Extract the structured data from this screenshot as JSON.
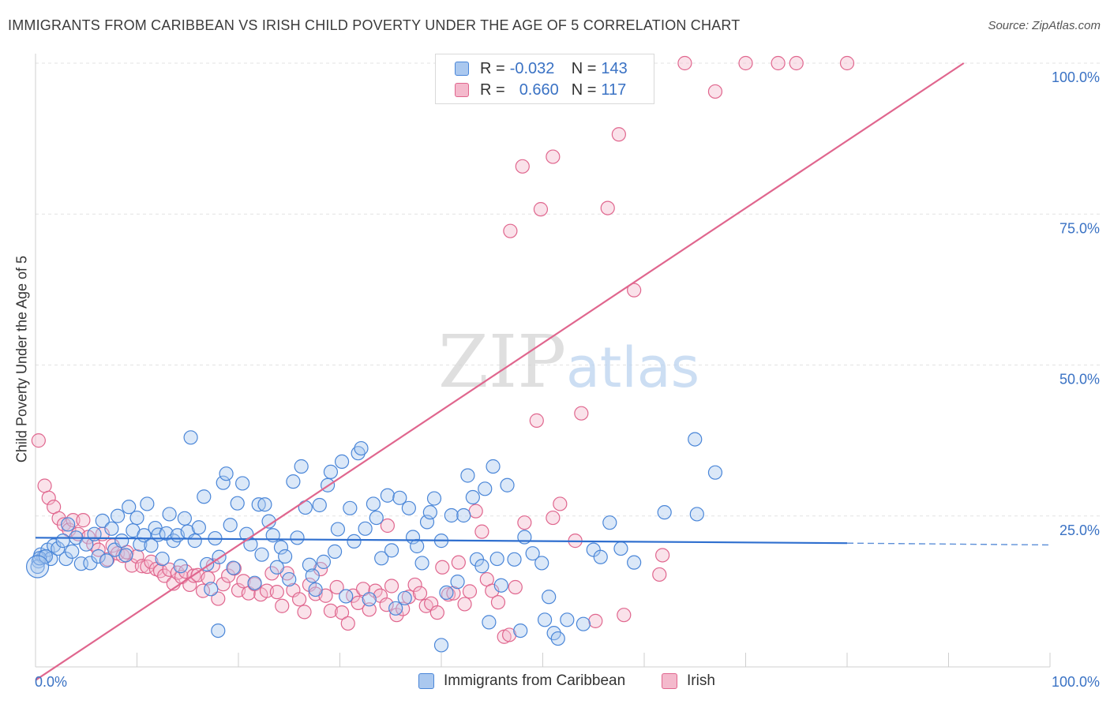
{
  "title": "IMMIGRANTS FROM CARIBBEAN VS IRISH CHILD POVERTY UNDER THE AGE OF 5 CORRELATION CHART",
  "source": "Source: ZipAtlas.com",
  "watermark": {
    "zip": "ZIP",
    "atlas": "atlas"
  },
  "legend": {
    "rows": [
      {
        "r_label": "R =",
        "r_value": "-0.032",
        "n_label": "N =",
        "n_value": "143"
      },
      {
        "r_label": "R =",
        "r_value": "0.660",
        "n_label": "N =",
        "n_value": "117"
      }
    ]
  },
  "bottom_legend": {
    "series1": "Immigrants from Caribbean",
    "series2": "Irish"
  },
  "colors": {
    "blue": "#4a86d8",
    "blue_fill": "#aac8ef",
    "pink": "#e0668e",
    "pink_fill": "#f4b9cc",
    "axis_label": "#3a72c4"
  },
  "chart_data": {
    "type": "scatter",
    "title": "IMMIGRANTS FROM CARIBBEAN VS IRISH CHILD POVERTY UNDER THE AGE OF 5 CORRELATION CHART",
    "xlabel": "",
    "ylabel": "Child Poverty Under the Age of 5",
    "xlim": [
      0,
      100
    ],
    "ylim": [
      0,
      100
    ],
    "x_tick_labels": [
      "0.0%",
      "100.0%"
    ],
    "y_tick_labels": [
      "100.0%",
      "75.0%",
      "50.0%",
      "25.0%"
    ],
    "y_ticks": [
      100,
      75,
      50,
      25
    ],
    "grid": true,
    "legend_position": "top-center",
    "series": [
      {
        "name": "Immigrants from Caribbean",
        "color": "#4a86d8",
        "R": -0.032,
        "N": 143,
        "trend": {
          "x": [
            0,
            80
          ],
          "y": [
            21.4,
            20.5
          ],
          "dashed_to_x": 100,
          "dashed_y_end": 20.2
        },
        "points": [
          [
            0.3,
            17.5
          ],
          [
            0.5,
            18.6
          ],
          [
            0.8,
            18.2
          ],
          [
            1.2,
            19.4
          ],
          [
            1.5,
            17.9
          ],
          [
            1.8,
            20.1
          ],
          [
            2.2,
            19.6
          ],
          [
            2.7,
            20.9
          ],
          [
            3.0,
            17.9
          ],
          [
            3.2,
            23.6
          ],
          [
            3.6,
            19.1
          ],
          [
            4.0,
            21.4
          ],
          [
            4.5,
            17.1
          ],
          [
            5.0,
            20.3
          ],
          [
            5.4,
            17.2
          ],
          [
            5.8,
            22.0
          ],
          [
            6.2,
            18.3
          ],
          [
            6.6,
            24.2
          ],
          [
            7.0,
            17.6
          ],
          [
            7.5,
            22.9
          ],
          [
            7.8,
            19.4
          ],
          [
            8.1,
            25.0
          ],
          [
            8.5,
            20.9
          ],
          [
            8.9,
            18.5
          ],
          [
            9.2,
            26.5
          ],
          [
            9.6,
            22.6
          ],
          [
            10.0,
            24.7
          ],
          [
            10.3,
            20.3
          ],
          [
            10.7,
            21.8
          ],
          [
            11.0,
            27.0
          ],
          [
            11.4,
            20.1
          ],
          [
            11.8,
            23.0
          ],
          [
            12.1,
            21.9
          ],
          [
            12.5,
            17.9
          ],
          [
            12.9,
            22.1
          ],
          [
            13.2,
            25.3
          ],
          [
            13.6,
            20.9
          ],
          [
            14.0,
            21.8
          ],
          [
            14.3,
            16.7
          ],
          [
            14.7,
            24.6
          ],
          [
            15.0,
            22.4
          ],
          [
            15.3,
            38.0
          ],
          [
            15.7,
            20.9
          ],
          [
            16.1,
            23.1
          ],
          [
            16.6,
            28.2
          ],
          [
            16.9,
            17.0
          ],
          [
            17.3,
            12.9
          ],
          [
            17.7,
            21.3
          ],
          [
            18.1,
            18.2
          ],
          [
            18.5,
            30.5
          ],
          [
            18.8,
            32.0
          ],
          [
            19.2,
            23.5
          ],
          [
            19.5,
            16.4
          ],
          [
            19.9,
            27.1
          ],
          [
            20.4,
            30.4
          ],
          [
            20.8,
            22.0
          ],
          [
            21.2,
            20.3
          ],
          [
            21.6,
            13.9
          ],
          [
            22.0,
            26.9
          ],
          [
            22.3,
            18.6
          ],
          [
            22.6,
            26.9
          ],
          [
            23.0,
            24.1
          ],
          [
            23.4,
            21.8
          ],
          [
            23.8,
            16.5
          ],
          [
            24.2,
            19.8
          ],
          [
            24.6,
            18.3
          ],
          [
            25.0,
            14.5
          ],
          [
            25.4,
            30.7
          ],
          [
            25.8,
            21.4
          ],
          [
            26.2,
            33.2
          ],
          [
            26.6,
            26.4
          ],
          [
            27.0,
            16.9
          ],
          [
            27.3,
            15.1
          ],
          [
            27.6,
            12.8
          ],
          [
            28.0,
            26.8
          ],
          [
            28.4,
            17.4
          ],
          [
            28.8,
            30.1
          ],
          [
            29.1,
            32.3
          ],
          [
            29.5,
            19.1
          ],
          [
            29.8,
            22.8
          ],
          [
            30.2,
            34.0
          ],
          [
            30.6,
            11.7
          ],
          [
            31.0,
            26.3
          ],
          [
            31.4,
            20.8
          ],
          [
            31.8,
            35.4
          ],
          [
            32.1,
            36.2
          ],
          [
            32.5,
            22.9
          ],
          [
            32.9,
            11.2
          ],
          [
            33.3,
            27.0
          ],
          [
            33.6,
            24.7
          ],
          [
            34.1,
            18.0
          ],
          [
            34.7,
            28.4
          ],
          [
            35.1,
            19.3
          ],
          [
            35.5,
            9.7
          ],
          [
            35.9,
            28.0
          ],
          [
            36.4,
            11.4
          ],
          [
            36.8,
            26.3
          ],
          [
            37.2,
            21.5
          ],
          [
            37.6,
            20.0
          ],
          [
            38.1,
            17.2
          ],
          [
            38.6,
            24.0
          ],
          [
            38.9,
            25.6
          ],
          [
            39.3,
            27.9
          ],
          [
            40.0,
            20.9
          ],
          [
            40.5,
            12.3
          ],
          [
            41.0,
            25.1
          ],
          [
            41.6,
            14.1
          ],
          [
            42.2,
            25.1
          ],
          [
            42.6,
            31.7
          ],
          [
            43.1,
            28.1
          ],
          [
            43.5,
            17.8
          ],
          [
            44.0,
            16.7
          ],
          [
            44.3,
            29.5
          ],
          [
            44.7,
            7.4
          ],
          [
            45.1,
            33.2
          ],
          [
            45.5,
            17.9
          ],
          [
            45.9,
            13.5
          ],
          [
            46.5,
            30.1
          ],
          [
            47.2,
            17.8
          ],
          [
            47.8,
            6.0
          ],
          [
            48.2,
            21.5
          ],
          [
            49.0,
            18.8
          ],
          [
            49.9,
            17.2
          ],
          [
            50.2,
            7.8
          ],
          [
            50.6,
            11.6
          ],
          [
            51.1,
            5.6
          ],
          [
            51.5,
            4.7
          ],
          [
            52.4,
            7.8
          ],
          [
            54.0,
            7.1
          ],
          [
            55.0,
            19.4
          ],
          [
            55.7,
            18.2
          ],
          [
            56.6,
            23.9
          ],
          [
            57.7,
            19.6
          ],
          [
            59.0,
            17.3
          ],
          [
            62.0,
            25.6
          ],
          [
            65.0,
            37.7
          ],
          [
            65.2,
            25.3
          ],
          [
            67.0,
            32.2
          ],
          [
            18.0,
            6.0
          ],
          [
            0.2,
            16.6
          ],
          [
            0.4,
            18.0
          ],
          [
            1.0,
            18.3
          ],
          [
            40.0,
            3.6
          ]
        ]
      },
      {
        "name": "Irish",
        "color": "#e0668e",
        "R": 0.66,
        "N": 117,
        "trend": {
          "x": [
            0,
            91.5
          ],
          "y": [
            -2.2,
            100
          ]
        },
        "points": [
          [
            0.3,
            37.5
          ],
          [
            0.9,
            30.0
          ],
          [
            1.3,
            28.0
          ],
          [
            1.8,
            26.5
          ],
          [
            2.3,
            24.6
          ],
          [
            2.8,
            23.6
          ],
          [
            3.3,
            22.7
          ],
          [
            3.7,
            24.3
          ],
          [
            4.2,
            22.0
          ],
          [
            4.7,
            24.3
          ],
          [
            5.2,
            21.5
          ],
          [
            5.7,
            20.3
          ],
          [
            6.2,
            19.4
          ],
          [
            6.6,
            22.0
          ],
          [
            7.1,
            17.8
          ],
          [
            7.6,
            20.1
          ],
          [
            8.1,
            18.8
          ],
          [
            8.6,
            18.4
          ],
          [
            9.0,
            19.0
          ],
          [
            9.5,
            16.8
          ],
          [
            10.0,
            18.3
          ],
          [
            10.5,
            16.7
          ],
          [
            11.0,
            16.6
          ],
          [
            11.4,
            17.4
          ],
          [
            11.9,
            16.2
          ],
          [
            12.3,
            15.9
          ],
          [
            12.7,
            15.1
          ],
          [
            13.2,
            16.1
          ],
          [
            13.6,
            13.8
          ],
          [
            14.0,
            15.6
          ],
          [
            14.4,
            14.9
          ],
          [
            14.8,
            15.8
          ],
          [
            15.2,
            13.6
          ],
          [
            15.6,
            15.1
          ],
          [
            16.0,
            15.2
          ],
          [
            16.5,
            12.6
          ],
          [
            17.0,
            14.7
          ],
          [
            17.5,
            16.8
          ],
          [
            18.0,
            11.3
          ],
          [
            18.5,
            13.7
          ],
          [
            19.0,
            15.1
          ],
          [
            19.6,
            16.3
          ],
          [
            20.0,
            12.7
          ],
          [
            20.5,
            14.2
          ],
          [
            21.0,
            12.2
          ],
          [
            21.6,
            13.7
          ],
          [
            22.2,
            12.0
          ],
          [
            22.8,
            12.6
          ],
          [
            23.3,
            15.5
          ],
          [
            23.8,
            12.4
          ],
          [
            24.3,
            10.1
          ],
          [
            24.8,
            15.5
          ],
          [
            25.4,
            12.7
          ],
          [
            26.0,
            11.2
          ],
          [
            26.5,
            9.1
          ],
          [
            27.0,
            13.6
          ],
          [
            27.6,
            12.1
          ],
          [
            28.1,
            16.2
          ],
          [
            28.6,
            11.8
          ],
          [
            29.1,
            9.3
          ],
          [
            29.7,
            13.2
          ],
          [
            30.2,
            9.0
          ],
          [
            30.8,
            7.2
          ],
          [
            31.3,
            11.8
          ],
          [
            31.8,
            10.6
          ],
          [
            32.3,
            12.9
          ],
          [
            32.9,
            9.5
          ],
          [
            33.5,
            12.6
          ],
          [
            34.0,
            11.8
          ],
          [
            34.6,
            10.3
          ],
          [
            35.1,
            13.4
          ],
          [
            35.6,
            8.6
          ],
          [
            36.2,
            9.6
          ],
          [
            36.8,
            11.6
          ],
          [
            37.4,
            13.6
          ],
          [
            37.9,
            12.2
          ],
          [
            38.5,
            10.1
          ],
          [
            39.0,
            10.5
          ],
          [
            39.6,
            9.0
          ],
          [
            40.1,
            16.5
          ],
          [
            40.7,
            12.0
          ],
          [
            41.2,
            12.2
          ],
          [
            41.7,
            17.3
          ],
          [
            42.3,
            10.4
          ],
          [
            42.8,
            12.5
          ],
          [
            43.4,
            25.8
          ],
          [
            44.0,
            22.4
          ],
          [
            44.5,
            14.5
          ],
          [
            45.0,
            12.6
          ],
          [
            45.6,
            10.7
          ],
          [
            46.2,
            5.0
          ],
          [
            46.7,
            5.3
          ],
          [
            47.3,
            13.2
          ],
          [
            48.2,
            23.9
          ],
          [
            49.4,
            40.8
          ],
          [
            51.0,
            24.7
          ],
          [
            51.7,
            27.0
          ],
          [
            53.2,
            20.9
          ],
          [
            53.8,
            42.0
          ],
          [
            55.2,
            7.6
          ],
          [
            56.4,
            76.0
          ],
          [
            57.5,
            88.2
          ],
          [
            59.0,
            62.4
          ],
          [
            61.5,
            15.3
          ],
          [
            61.8,
            18.5
          ],
          [
            46.8,
            72.2
          ],
          [
            48.0,
            82.9
          ],
          [
            49.8,
            75.8
          ],
          [
            51.0,
            84.5
          ],
          [
            64.0,
            100.0
          ],
          [
            67.0,
            95.3
          ],
          [
            70.0,
            100.0
          ],
          [
            73.2,
            100.0
          ],
          [
            75.0,
            100.0
          ],
          [
            80.0,
            100.0
          ],
          [
            58.0,
            8.6
          ],
          [
            34.7,
            23.4
          ]
        ]
      }
    ]
  }
}
